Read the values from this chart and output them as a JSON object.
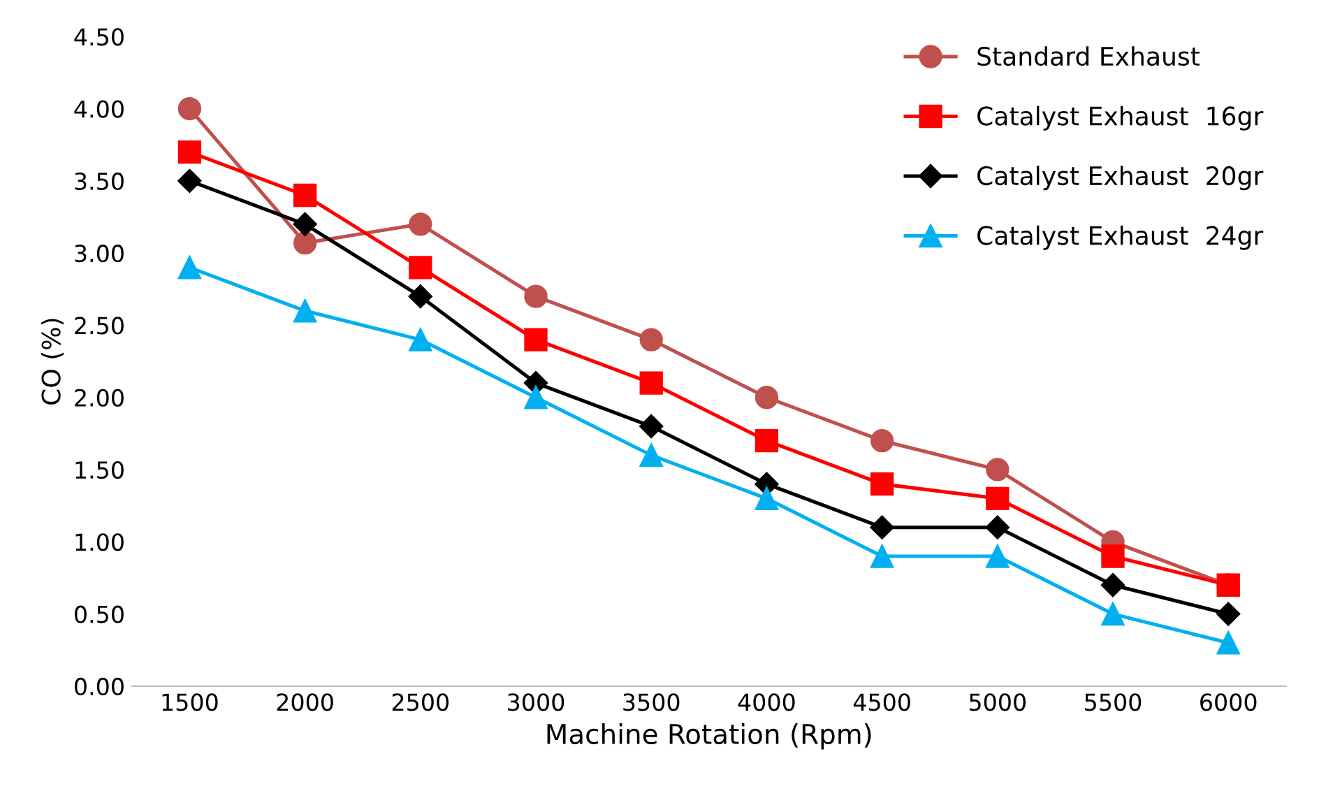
{
  "chart_data": {
    "type": "line",
    "xlabel": "Machine Rotation (Rpm)",
    "ylabel": "CO (%)",
    "categories": [
      "1500",
      "2000",
      "2500",
      "3000",
      "3500",
      "4000",
      "4500",
      "5000",
      "5500",
      "6000"
    ],
    "series": [
      {
        "name": "Standard Exhaust",
        "color": "#c0504d",
        "marker": "circle",
        "values": [
          4.0,
          3.07,
          3.2,
          2.7,
          2.4,
          2.0,
          1.7,
          1.5,
          1.0,
          0.7
        ]
      },
      {
        "name": "Catalyst Exhaust  16gr",
        "color": "#ff0000",
        "marker": "square",
        "values": [
          3.7,
          3.4,
          2.9,
          2.4,
          2.1,
          1.7,
          1.4,
          1.3,
          0.9,
          0.7
        ]
      },
      {
        "name": "Catalyst Exhaust  20gr",
        "color": "#000000",
        "marker": "diamond",
        "values": [
          3.5,
          3.2,
          2.7,
          2.1,
          1.8,
          1.4,
          1.1,
          1.1,
          0.7,
          0.5
        ]
      },
      {
        "name": "Catalyst Exhaust  24gr",
        "color": "#00b0f0",
        "marker": "triangle",
        "values": [
          2.9,
          2.6,
          2.4,
          2.0,
          1.6,
          1.3,
          0.9,
          0.9,
          0.5,
          0.3
        ]
      }
    ],
    "ylim": [
      0,
      4.5
    ],
    "yticks": [
      {
        "value": 0,
        "label": "0.00"
      },
      {
        "value": 0.5,
        "label": "0.50"
      },
      {
        "value": 1,
        "label": "1.00"
      },
      {
        "value": 1.5,
        "label": "1.50"
      },
      {
        "value": 2,
        "label": "2.00"
      },
      {
        "value": 2.5,
        "label": "2.50"
      },
      {
        "value": 3,
        "label": "3.00"
      },
      {
        "value": 3.5,
        "label": "3.50"
      },
      {
        "value": 4,
        "label": "4.00"
      },
      {
        "value": 4.5,
        "label": "4.50"
      }
    ],
    "grid": false,
    "legend": "top right",
    "line_style": "solid"
  }
}
